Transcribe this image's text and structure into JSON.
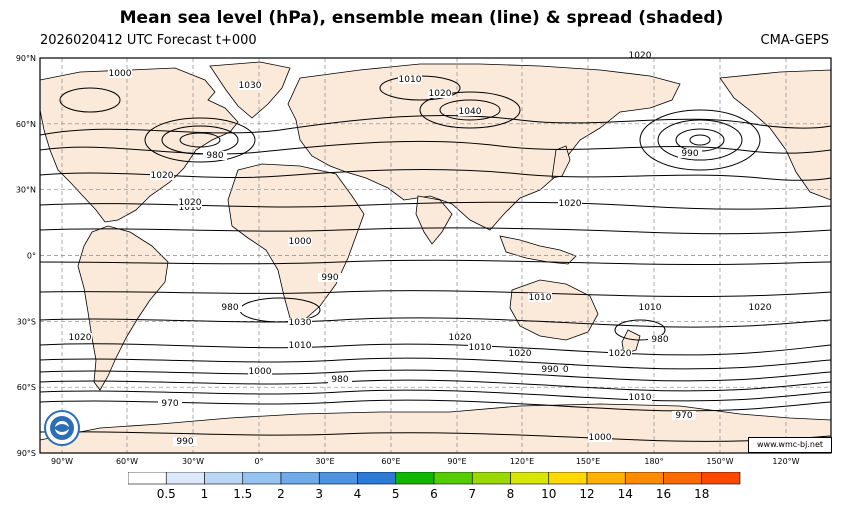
{
  "title": "Mean sea level (hPa), ensemble mean (line) & spread (shaded)",
  "subtitle_left": "2026020412 UTC Forecast t+000",
  "subtitle_right": "CMA-GEPS",
  "credit": "www.wmc-bj.net",
  "lat_labels": [
    "90°N",
    "60°N",
    "30°N",
    "0°",
    "30°S",
    "60°S",
    "90°S"
  ],
  "lon_labels": [
    "90°W",
    "60°W",
    "30°W",
    "0°",
    "30°E",
    "60°E",
    "90°E",
    "120°E",
    "150°E",
    "180°",
    "150°W",
    "120°W"
  ],
  "contour_labels": [
    "1000",
    "1010",
    "1020",
    "1030",
    "1040",
    "980",
    "990",
    "970",
    "1020",
    "1010",
    "1000",
    "990",
    "980",
    "1030",
    "1010",
    "1020",
    "1020",
    "1010",
    "1020",
    "1020",
    "1010",
    "1010",
    "1020",
    "990",
    "980",
    "990",
    "1000",
    "1010",
    "1020",
    "1020",
    "980",
    "970",
    "990",
    "1020",
    "1000"
  ],
  "colorbar": {
    "labels": [
      "0.5",
      "1",
      "1.5",
      "2",
      "3",
      "4",
      "5",
      "6",
      "7",
      "8",
      "10",
      "12",
      "14",
      "16",
      "18"
    ],
    "colors": [
      "#ffffff",
      "#dbe9fa",
      "#bcd7f5",
      "#96c3f0",
      "#6fabe8",
      "#4d93e0",
      "#2f7ad6",
      "#12b800",
      "#55cc00",
      "#99d900",
      "#d9e600",
      "#ffd900",
      "#ffb300",
      "#ff8c00",
      "#ff6a00",
      "#ff4800"
    ]
  }
}
